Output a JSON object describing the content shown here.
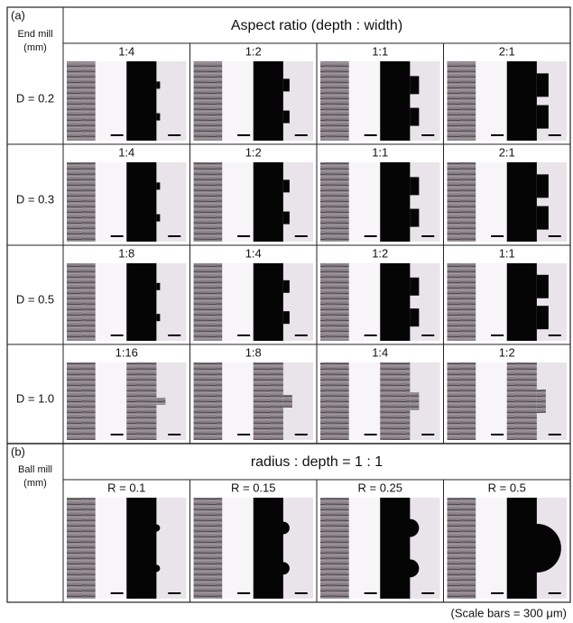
{
  "part_a": {
    "label": "(a)",
    "side_title": [
      "End mill",
      "(mm)"
    ],
    "header": "Aspect ratio (depth : width)",
    "rows": [
      {
        "label": "D = 0.2",
        "cells": [
          "1:4",
          "1:2",
          "1:1",
          "2:1"
        ]
      },
      {
        "label": "D = 0.3",
        "cells": [
          "1:4",
          "1:2",
          "1:1",
          "2:1"
        ]
      },
      {
        "label": "D = 0.5",
        "cells": [
          "1:8",
          "1:4",
          "1:2",
          "1:1"
        ]
      },
      {
        "label": "D = 1.0",
        "cells": [
          "1:16",
          "1:8",
          "1:4",
          "1:2"
        ]
      }
    ]
  },
  "part_b": {
    "label": "(b)",
    "side_title": [
      "Ball mill",
      "(mm)"
    ],
    "header": "radius : depth = 1 : 1",
    "cells": [
      "R = 0.1",
      "R = 0.15",
      "R = 0.25",
      "R = 0.5"
    ]
  },
  "caption": "(Scale bars = 300 μm)"
}
